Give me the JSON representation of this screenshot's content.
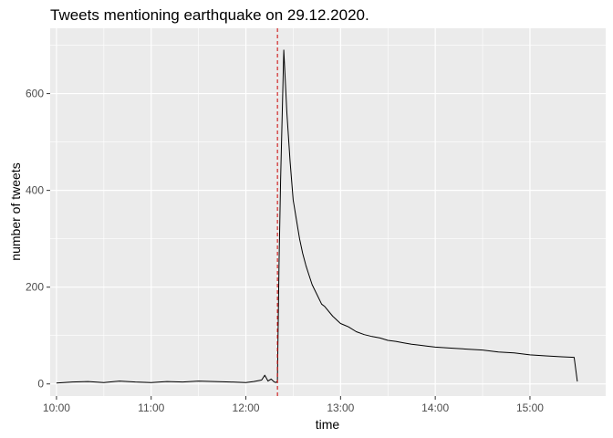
{
  "chart_data": {
    "type": "line",
    "title": "Tweets mentioning earthquake on 29.12.2020.",
    "xlabel": "time",
    "ylabel": "number of tweets",
    "xlim": [
      "09:56",
      "15:48"
    ],
    "ylim": [
      -25,
      735
    ],
    "x_ticks": [
      "10:00",
      "11:00",
      "12:00",
      "13:00",
      "14:00",
      "15:00"
    ],
    "y_ticks": [
      0,
      200,
      400,
      600
    ],
    "grid": true,
    "background_color": "#ebebeb",
    "line_color": "#000000",
    "vline": {
      "x": "12:20",
      "color": "#cc0000",
      "style": "dashed"
    },
    "series": [
      {
        "x": [
          "10:00",
          "10:10",
          "10:20",
          "10:30",
          "10:40",
          "10:50",
          "11:00",
          "11:10",
          "11:20",
          "11:30",
          "11:40",
          "11:50",
          "12:00",
          "12:05",
          "12:10",
          "12:12",
          "12:14",
          "12:16",
          "12:18",
          "12:19",
          "12:20",
          "12:21",
          "12:22",
          "12:24",
          "12:26",
          "12:28",
          "12:30",
          "12:32",
          "12:34",
          "12:36",
          "12:38",
          "12:40",
          "12:42",
          "12:45",
          "12:48",
          "12:50",
          "12:55",
          "13:00",
          "13:05",
          "13:10",
          "13:15",
          "13:20",
          "13:25",
          "13:30",
          "13:35",
          "13:40",
          "13:45",
          "13:50",
          "13:55",
          "14:00",
          "14:10",
          "14:20",
          "14:30",
          "14:40",
          "14:50",
          "15:00",
          "15:10",
          "15:20",
          "15:28",
          "15:30"
        ],
        "values": [
          2,
          4,
          5,
          3,
          6,
          4,
          3,
          5,
          4,
          6,
          5,
          4,
          3,
          5,
          8,
          18,
          6,
          10,
          4,
          3,
          5,
          250,
          420,
          690,
          560,
          460,
          380,
          340,
          300,
          270,
          245,
          225,
          205,
          185,
          165,
          160,
          140,
          125,
          118,
          108,
          102,
          98,
          95,
          90,
          88,
          85,
          82,
          80,
          78,
          76,
          74,
          72,
          70,
          66,
          64,
          60,
          58,
          56,
          55,
          5
        ]
      }
    ]
  }
}
